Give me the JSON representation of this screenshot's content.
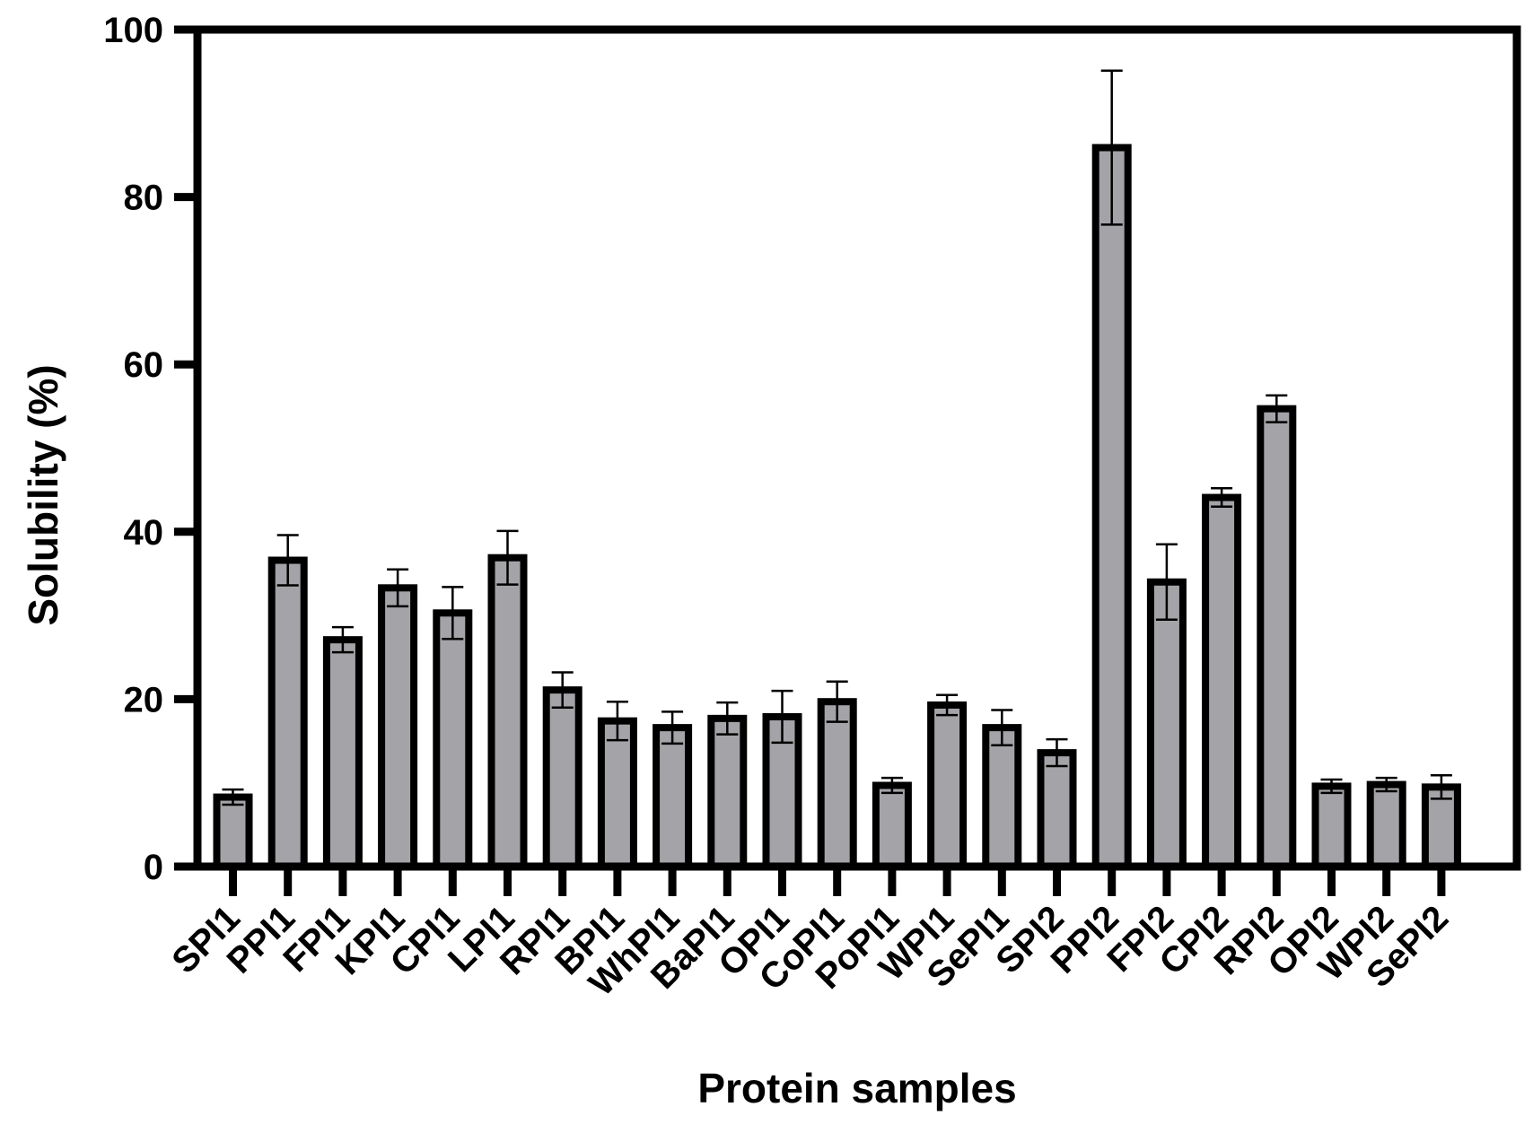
{
  "chart_data": {
    "type": "bar",
    "title": "",
    "xlabel": "Protein samples",
    "ylabel": "Solubility (%)",
    "ylim": [
      0,
      100
    ],
    "yticks": [
      0,
      20,
      40,
      60,
      80,
      100
    ],
    "grid": false,
    "legend": "none",
    "categories": [
      "SPI1",
      "PPI1",
      "FPI1",
      "KPI1",
      "CPI1",
      "LPI1",
      "RPI1",
      "BPI1",
      "WhPI1",
      "BaPI1",
      "OPI1",
      "CoPI1",
      "PoPI1",
      "WPI1",
      "SePI1",
      "SPI2",
      "PPI2",
      "FPI2",
      "CPI2",
      "RPI2",
      "OPI2",
      "WPI2",
      "SePI2"
    ],
    "values": [
      8.3,
      36.6,
      27.1,
      33.3,
      30.3,
      36.9,
      21.1,
      17.4,
      16.6,
      17.7,
      17.9,
      19.7,
      9.7,
      19.3,
      16.6,
      13.6,
      85.9,
      34.0,
      44.1,
      54.7,
      9.6,
      9.8,
      9.5
    ],
    "errors": [
      0.9,
      3.0,
      1.5,
      2.2,
      3.1,
      3.2,
      2.1,
      2.3,
      1.9,
      1.9,
      3.1,
      2.4,
      0.9,
      1.2,
      2.1,
      1.6,
      9.2,
      4.5,
      1.1,
      1.6,
      0.8,
      0.8,
      1.4
    ],
    "colors": {
      "bar_fill": "#a4a4a8",
      "bar_edge": "#000000",
      "axis": "#000000",
      "text": "#000000"
    }
  }
}
